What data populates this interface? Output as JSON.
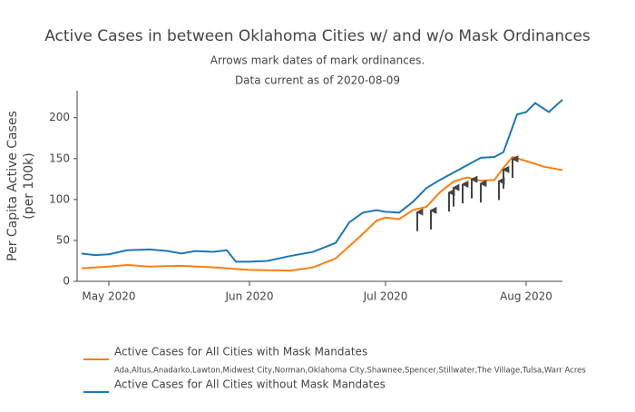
{
  "chart_data": {
    "type": "line",
    "title": "Active Cases in between Oklahoma Cities w/ and w/o Mask Ordinances",
    "subtitles": [
      "Arrows mark dates of mark ordinances.",
      "Data current as of 2020-08-09"
    ],
    "y_label": [
      "Per Capita Active Cases",
      "(per 100k)"
    ],
    "xlim": [
      "2020-04-24",
      "2020-08-09"
    ],
    "xticks": [
      {
        "value": "2020-05-01",
        "label": "May 2020"
      },
      {
        "value": "2020-06-01",
        "label": "Jun 2020"
      },
      {
        "value": "2020-07-01",
        "label": "Jul 2020"
      },
      {
        "value": "2020-08-01",
        "label": "Aug 2020"
      }
    ],
    "ylim": [
      0,
      233
    ],
    "yticks": [
      0,
      50,
      100,
      150,
      200
    ],
    "grid": false,
    "series": [
      {
        "name": "Active Cases for All Cities with Mask Mandates",
        "note": "Ada,Altus,Anadarko,Lawton,Midwest City,Norman,Oklahoma City,Shawnee,Spencer,Stillwater,The Village,Tulsa,Warr Acres",
        "color": "#ff7f0e",
        "x": [
          "2020-04-25",
          "2020-05-01",
          "2020-05-05",
          "2020-05-10",
          "2020-05-17",
          "2020-05-24",
          "2020-06-01",
          "2020-06-10",
          "2020-06-15",
          "2020-06-20",
          "2020-06-25",
          "2020-06-29",
          "2020-07-01",
          "2020-07-04",
          "2020-07-07",
          "2020-07-10",
          "2020-07-13",
          "2020-07-16",
          "2020-07-19",
          "2020-07-22",
          "2020-07-25",
          "2020-07-27",
          "2020-07-29",
          "2020-08-01",
          "2020-08-05",
          "2020-08-09"
        ],
        "values": [
          16,
          18,
          20,
          18,
          19,
          17,
          14,
          13,
          17,
          28,
          53,
          74,
          78,
          76,
          87,
          91,
          109,
          122,
          127,
          123,
          124,
          139,
          152,
          147,
          140,
          136
        ]
      },
      {
        "name": "Active Cases for All Cities without Mask Mandates",
        "color": "#1f77b4",
        "x": [
          "2020-04-25",
          "2020-04-28",
          "2020-05-01",
          "2020-05-05",
          "2020-05-10",
          "2020-05-14",
          "2020-05-17",
          "2020-05-20",
          "2020-05-24",
          "2020-05-27",
          "2020-05-29",
          "2020-06-01",
          "2020-06-05",
          "2020-06-10",
          "2020-06-15",
          "2020-06-20",
          "2020-06-23",
          "2020-06-26",
          "2020-06-29",
          "2020-07-01",
          "2020-07-04",
          "2020-07-07",
          "2020-07-10",
          "2020-07-13",
          "2020-07-16",
          "2020-07-19",
          "2020-07-22",
          "2020-07-25",
          "2020-07-27",
          "2020-07-30",
          "2020-08-01",
          "2020-08-03",
          "2020-08-06",
          "2020-08-09"
        ],
        "values": [
          34,
          32,
          33,
          38,
          39,
          37,
          34,
          37,
          36,
          38,
          24,
          24,
          25,
          31,
          36,
          47,
          72,
          84,
          87,
          85,
          84,
          97,
          114,
          124,
          133,
          142,
          151,
          152,
          158,
          204,
          207,
          218,
          207,
          222
        ]
      }
    ],
    "arrows": {
      "x": [
        "2020-07-08",
        "2020-07-11",
        "2020-07-15",
        "2020-07-16",
        "2020-07-18",
        "2020-07-20",
        "2020-07-22",
        "2020-07-26",
        "2020-07-27",
        "2020-07-29"
      ],
      "values": [
        88,
        90,
        112,
        118,
        122,
        128,
        123,
        126,
        140,
        153
      ]
    }
  }
}
